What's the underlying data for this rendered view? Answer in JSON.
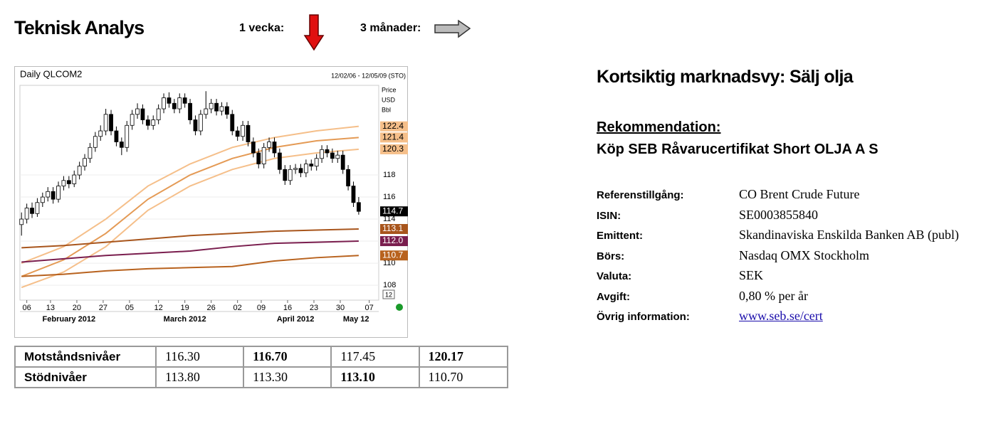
{
  "header": {
    "title": "Teknisk Analys",
    "week_label": "1 vecka:",
    "months_label": "3 månader:"
  },
  "chart_data": {
    "type": "candlestick",
    "title": "Daily QLCOM2",
    "subtitle": "12/02/06 - 12/05/09 (STO)",
    "y_label": [
      "Price",
      "USD",
      "Bbl"
    ],
    "ylim": [
      106.65,
      126.13
    ],
    "yticks": [
      108,
      110,
      112,
      114,
      116,
      118
    ],
    "xlim": [
      -0.3,
      67.8
    ],
    "xticks": [
      {
        "value": 1,
        "label": "06"
      },
      {
        "value": 5.5,
        "label": "13"
      },
      {
        "value": 10.5,
        "label": "20"
      },
      {
        "value": 15.5,
        "label": "27"
      },
      {
        "value": 20.5,
        "label": "05"
      },
      {
        "value": 26,
        "label": "12"
      },
      {
        "value": 31,
        "label": "19"
      },
      {
        "value": 36,
        "label": "26"
      },
      {
        "value": 41,
        "label": "02"
      },
      {
        "value": 45.5,
        "label": "09"
      },
      {
        "value": 50.5,
        "label": "16"
      },
      {
        "value": 55.5,
        "label": "23"
      },
      {
        "value": 60.5,
        "label": "30"
      },
      {
        "value": 66,
        "label": "07"
      }
    ],
    "months": [
      {
        "value": 9,
        "label": "February 2012"
      },
      {
        "value": 31,
        "label": "March 2012"
      },
      {
        "value": 52,
        "label": "April 2012"
      },
      {
        "value": 63.5,
        "label": "May 12"
      }
    ],
    "candles": [
      [
        113.5,
        114.6,
        112.5,
        114.0
      ],
      [
        114.0,
        115.4,
        113.6,
        115.0
      ],
      [
        115.0,
        115.5,
        114.1,
        114.5
      ],
      [
        114.5,
        115.9,
        114.2,
        115.5
      ],
      [
        115.5,
        116.4,
        115.1,
        116
      ],
      [
        116,
        116.9,
        115.6,
        116.5
      ],
      [
        116.5,
        116.9,
        115.4,
        115.8
      ],
      [
        115.8,
        117.4,
        115.5,
        117
      ],
      [
        117,
        117.9,
        116.6,
        117.5
      ],
      [
        117.5,
        117.9,
        116.8,
        117.2
      ],
      [
        117.2,
        118.4,
        116.9,
        118
      ],
      [
        118,
        119.2,
        117.6,
        118.8
      ],
      [
        118.8,
        119.9,
        118.4,
        119.5
      ],
      [
        119.5,
        120.9,
        119.1,
        120.5
      ],
      [
        120.5,
        121.9,
        120.1,
        121.5
      ],
      [
        121.5,
        122.5,
        121.1,
        122
      ],
      [
        122,
        124,
        121.6,
        123.5
      ],
      [
        123.5,
        123.9,
        121.6,
        122
      ],
      [
        122,
        122.4,
        120.6,
        121
      ],
      [
        121,
        121.4,
        119.8,
        120.5
      ],
      [
        120.5,
        122.9,
        120.1,
        122.5
      ],
      [
        122.5,
        123.9,
        122.1,
        123.5
      ],
      [
        123.5,
        124.5,
        123.1,
        124
      ],
      [
        124,
        124.4,
        122.6,
        123
      ],
      [
        123,
        123.4,
        122.1,
        122.5
      ],
      [
        122.5,
        123.4,
        122.1,
        123
      ],
      [
        123,
        124.4,
        122.6,
        124
      ],
      [
        124,
        125.4,
        123.6,
        125
      ],
      [
        125,
        125.5,
        124.1,
        124.5
      ],
      [
        124.5,
        124.9,
        123.6,
        124
      ],
      [
        124,
        125.4,
        123.6,
        125
      ],
      [
        125,
        125.4,
        124.1,
        124.5
      ],
      [
        124.5,
        124.9,
        122.6,
        123
      ],
      [
        123,
        123.4,
        121.6,
        122
      ],
      [
        122,
        123.9,
        121.6,
        123.5
      ],
      [
        123.5,
        125.6,
        123.1,
        124
      ],
      [
        124,
        124.9,
        123.6,
        124.5
      ],
      [
        124.5,
        124.9,
        123.4,
        123.8
      ],
      [
        123.8,
        124.6,
        123.4,
        124.2
      ],
      [
        124.2,
        124.6,
        123.1,
        123.5
      ],
      [
        123.5,
        123.9,
        121.6,
        122
      ],
      [
        122,
        122.4,
        121.1,
        121.5
      ],
      [
        121.5,
        122.9,
        121.1,
        122.5
      ],
      [
        122.5,
        122.9,
        120.6,
        121
      ],
      [
        121,
        121.4,
        119.6,
        120
      ],
      [
        120,
        120.4,
        118.6,
        119
      ],
      [
        119,
        120.9,
        118.6,
        120.5
      ],
      [
        120.5,
        121.4,
        120.1,
        121
      ],
      [
        121,
        121.4,
        119.6,
        120
      ],
      [
        120,
        120.4,
        118.1,
        118.5
      ],
      [
        118.5,
        118.9,
        117.1,
        117.5
      ],
      [
        117.5,
        118.9,
        117.1,
        118.5
      ],
      [
        118.5,
        119,
        118.1,
        118.6
      ],
      [
        118.6,
        119,
        117.8,
        118.2
      ],
      [
        118.2,
        119.4,
        117.8,
        119
      ],
      [
        119,
        119.4,
        118.4,
        118.8
      ],
      [
        118.8,
        119.9,
        118.4,
        119.5
      ],
      [
        119.5,
        120.7,
        119.1,
        120.3
      ],
      [
        120.3,
        120.7,
        119.6,
        120
      ],
      [
        120,
        120.4,
        119.1,
        119.5
      ],
      [
        119.5,
        120.2,
        119.1,
        119.8
      ],
      [
        119.8,
        120.2,
        118.1,
        118.5
      ],
      [
        118.5,
        118.9,
        116.6,
        117
      ],
      [
        117,
        117.4,
        115.1,
        115.5
      ],
      [
        115.5,
        116,
        114.4,
        114.7
      ]
    ],
    "ma_x": [
      0,
      8,
      16,
      24,
      32,
      40,
      48,
      56,
      64
    ],
    "series": [
      {
        "color": "#f5bf8a",
        "values": [
          110.0,
          111.5,
          114.0,
          117.0,
          119.0,
          120.5,
          121.4,
          122.0,
          122.41
        ]
      },
      {
        "color": "#e49a55",
        "values": [
          108.8,
          110.3,
          112.7,
          115.8,
          118.0,
          119.5,
          120.5,
          121.1,
          121.4
        ]
      },
      {
        "color": "#f5bf8a",
        "values": [
          107.8,
          109.2,
          111.5,
          114.8,
          117.0,
          118.5,
          119.5,
          120.0,
          120.33
        ]
      },
      {
        "color": "#a8551c",
        "values": [
          111.4,
          111.6,
          111.9,
          112.2,
          112.5,
          112.7,
          112.9,
          113.0,
          113.1
        ]
      },
      {
        "color": "#7a1e4e",
        "values": [
          110.1,
          110.4,
          110.7,
          110.9,
          111.1,
          111.5,
          111.8,
          111.9,
          112.0
        ]
      },
      {
        "color": "#b8621e",
        "values": [
          108.8,
          109.0,
          109.3,
          109.5,
          109.6,
          109.7,
          110.2,
          110.5,
          110.7
        ]
      }
    ],
    "price_labels": [
      {
        "value": 122.41,
        "label": "122.4",
        "color": "#f5bf8a",
        "text_color": "#000"
      },
      {
        "value": 121.4,
        "label": "121.4",
        "color": "#f5bf8a",
        "text_color": "#000"
      },
      {
        "value": 120.33,
        "label": "120.3",
        "color": "#f5bf8a",
        "text_color": "#000"
      },
      {
        "value": 114.7,
        "label": "114.7",
        "color": "#000000",
        "text_color": "#fff"
      },
      {
        "value": 113.1,
        "label": "113.1",
        "color": "#a8551c",
        "text_color": "#fff"
      },
      {
        "value": 112.0,
        "label": "112.0",
        "color": "#7a1e4e",
        "text_color": "#fff"
      },
      {
        "value": 110.7,
        "label": "110.7",
        "color": "#b8621e",
        "text_color": "#fff"
      }
    ],
    "annotation": "12"
  },
  "table": {
    "rows": [
      [
        "Motståndsnivåer",
        "116.30",
        "116.70",
        "117.45",
        "120.17"
      ],
      [
        "Stödnivåer",
        "113.80",
        "113.30",
        "113.10",
        "110.70"
      ]
    ],
    "bold": [
      [
        0,
        2
      ],
      [
        0,
        4
      ],
      [
        1,
        3
      ]
    ]
  },
  "view": {
    "heading": "Kortsiktig marknadsvy: Sälj olja",
    "rec_label": "Rekommendation:",
    "rec_text": "Köp SEB Råvarucertifikat Short OLJA A S",
    "info": [
      [
        "Referenstillgång:",
        "CO Brent Crude Future"
      ],
      [
        "ISIN:",
        "SE0003855840"
      ],
      [
        "Emittent:",
        "Skandinaviska Enskilda Banken AB (publ)"
      ],
      [
        "Börs:",
        "Nasdaq OMX Stockholm"
      ],
      [
        "Valuta:",
        "SEK"
      ],
      [
        "Avgift:",
        "0,80 % per år"
      ],
      [
        "Övrig information:",
        "www.seb.se/cert"
      ]
    ]
  }
}
